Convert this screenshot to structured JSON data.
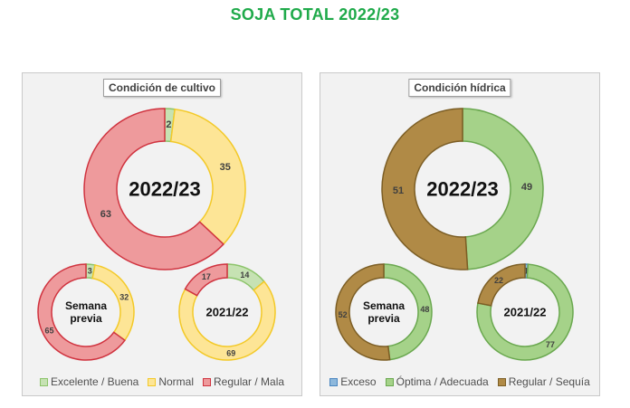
{
  "page": {
    "title": "SOJA TOTAL 2022/23"
  },
  "chart_data": [
    {
      "type": "donut",
      "panel_title": "Condición  de cultivo",
      "legend": [
        "Excelente / Buena",
        "Normal",
        "Regular / Mala"
      ],
      "colors": {
        "fills": [
          "#c6e2b3",
          "#fde596",
          "#ee9a9c"
        ],
        "strokes": [
          "#8cc46a",
          "#f3c928",
          "#d0333f"
        ]
      },
      "rings": [
        {
          "label": "2022/23",
          "values": [
            2,
            35,
            63
          ],
          "value_labels": [
            "2",
            "35",
            "63"
          ]
        },
        {
          "label": "Semana previa",
          "label_lines": [
            "Semana",
            "previa"
          ],
          "values": [
            3,
            32,
            65
          ],
          "value_labels": [
            "3",
            "32",
            "65"
          ]
        },
        {
          "label": "2021/22",
          "values": [
            14,
            69,
            17
          ],
          "value_labels": [
            "14",
            "69",
            "17"
          ]
        }
      ]
    },
    {
      "type": "donut",
      "panel_title": "Condición  hídrica",
      "legend": [
        "Exceso",
        "Óptima / Adecuada",
        "Regular / Sequía"
      ],
      "colors": {
        "fills": [
          "#8db8dc",
          "#a5d289",
          "#b08a46"
        ],
        "strokes": [
          "#4a86c0",
          "#6aa84f",
          "#7c5e25"
        ]
      },
      "rings": [
        {
          "label": "2022/23",
          "values": [
            0,
            49,
            51
          ],
          "value_labels": [
            "-",
            "49",
            "51"
          ]
        },
        {
          "label": "Semana previa",
          "label_lines": [
            "Semana",
            "previa"
          ],
          "values": [
            0,
            48,
            52
          ],
          "value_labels": [
            "-",
            "48",
            "52"
          ]
        },
        {
          "label": "2021/22",
          "values": [
            1,
            77,
            22
          ],
          "value_labels": [
            "1",
            "77",
            "22"
          ]
        }
      ]
    }
  ]
}
